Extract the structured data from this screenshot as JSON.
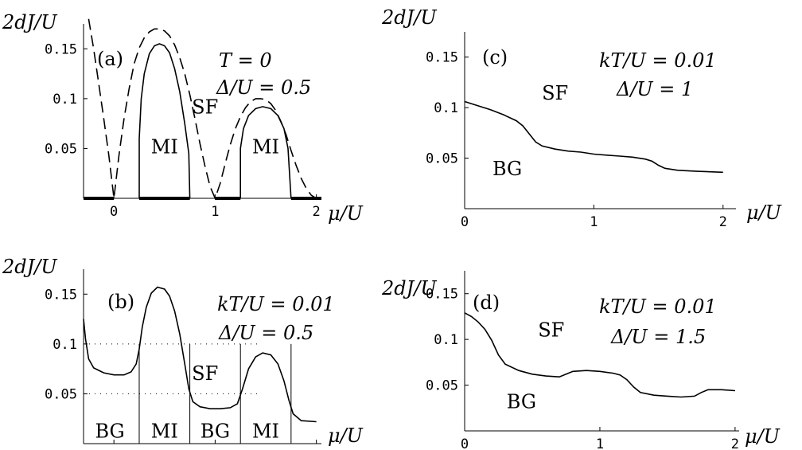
{
  "chart_data": [
    {
      "id": "a",
      "type": "line",
      "ylabel": "2dJ/U",
      "xlabel": "μ/U",
      "xlim": [
        -0.3,
        2.05
      ],
      "ylim": [
        0,
        0.175
      ],
      "xticks": [
        0,
        1,
        2
      ],
      "yticks": [
        0.05,
        0.1,
        0.15
      ],
      "panel_label": "(a)",
      "params": [
        "T = 0",
        "Δ/U = 0.5"
      ],
      "regions": [
        {
          "text": "MI",
          "x": 0.5,
          "y": 0.045
        },
        {
          "text": "SF",
          "x": 0.9,
          "y": 0.085
        },
        {
          "text": "MI",
          "x": 1.5,
          "y": 0.045
        }
      ],
      "series": [
        {
          "style": "solid",
          "points": [
            [
              0.25,
              0
            ],
            [
              0.25,
              0.06
            ],
            [
              0.27,
              0.1
            ],
            [
              0.3,
              0.125
            ],
            [
              0.35,
              0.145
            ],
            [
              0.4,
              0.153
            ],
            [
              0.45,
              0.155
            ],
            [
              0.5,
              0.153
            ],
            [
              0.55,
              0.146
            ],
            [
              0.6,
              0.13
            ],
            [
              0.65,
              0.107
            ],
            [
              0.7,
              0.075
            ],
            [
              0.74,
              0.045
            ],
            [
              0.75,
              0
            ]
          ]
        },
        {
          "style": "solid",
          "points": [
            [
              1.25,
              0
            ],
            [
              1.25,
              0.05
            ],
            [
              1.28,
              0.07
            ],
            [
              1.33,
              0.083
            ],
            [
              1.4,
              0.09
            ],
            [
              1.47,
              0.092
            ],
            [
              1.55,
              0.09
            ],
            [
              1.62,
              0.083
            ],
            [
              1.68,
              0.07
            ],
            [
              1.72,
              0.05
            ],
            [
              1.75,
              0
            ]
          ]
        },
        {
          "style": "dashed",
          "points": [
            [
              -0.25,
              0.18
            ],
            [
              -0.2,
              0.15
            ],
            [
              -0.15,
              0.115
            ],
            [
              -0.1,
              0.08
            ],
            [
              -0.05,
              0.043
            ],
            [
              0,
              0
            ],
            [
              0.05,
              0.043
            ],
            [
              0.1,
              0.08
            ],
            [
              0.15,
              0.11
            ],
            [
              0.2,
              0.135
            ],
            [
              0.25,
              0.151
            ],
            [
              0.3,
              0.161
            ],
            [
              0.35,
              0.167
            ],
            [
              0.4,
              0.17
            ],
            [
              0.45,
              0.17
            ],
            [
              0.5,
              0.168
            ],
            [
              0.55,
              0.163
            ],
            [
              0.6,
              0.154
            ],
            [
              0.65,
              0.141
            ],
            [
              0.7,
              0.125
            ],
            [
              0.75,
              0.104
            ],
            [
              0.8,
              0.08
            ],
            [
              0.85,
              0.055
            ],
            [
              0.9,
              0.032
            ],
            [
              0.95,
              0.012
            ],
            [
              1.0,
              0
            ],
            [
              1.05,
              0.015
            ],
            [
              1.1,
              0.035
            ],
            [
              1.15,
              0.054
            ],
            [
              1.2,
              0.07
            ],
            [
              1.25,
              0.082
            ],
            [
              1.3,
              0.091
            ],
            [
              1.35,
              0.097
            ],
            [
              1.4,
              0.1
            ],
            [
              1.45,
              0.1
            ],
            [
              1.5,
              0.099
            ],
            [
              1.55,
              0.095
            ],
            [
              1.6,
              0.088
            ],
            [
              1.65,
              0.077
            ],
            [
              1.7,
              0.064
            ],
            [
              1.75,
              0.048
            ],
            [
              1.8,
              0.033
            ],
            [
              1.85,
              0.02
            ],
            [
              1.9,
              0.01
            ],
            [
              1.95,
              0.003
            ],
            [
              2.0,
              0
            ]
          ]
        }
      ],
      "thick_segments": [
        [
          -0.3,
          0
        ],
        [
          0.25,
          0.75
        ],
        [
          1.0,
          1.25
        ],
        [
          1.75,
          2.05
        ]
      ]
    },
    {
      "id": "b",
      "type": "line",
      "ylabel": "2dJ/U",
      "xlabel": "μ/U",
      "xlim": [
        -0.3,
        2.05
      ],
      "ylim": [
        0,
        0.175
      ],
      "xticks": [
        0,
        1,
        2
      ],
      "yticks": [
        0.05,
        0.1,
        0.15
      ],
      "panel_label": "(b)",
      "params": [
        "kT/U = 0.01",
        "Δ/U = 0.5"
      ],
      "regions": [
        {
          "text": "BG",
          "x": -0.04,
          "y": 0.006
        },
        {
          "text": "MI",
          "x": 0.5,
          "y": 0.006
        },
        {
          "text": "SF",
          "x": 0.9,
          "y": 0.064
        },
        {
          "text": "BG",
          "x": 1.0,
          "y": 0.006
        },
        {
          "text": "MI",
          "x": 1.5,
          "y": 0.006
        }
      ],
      "dotted_levels": [
        0.1,
        0.05
      ],
      "dotted_xrange": [
        -0.3,
        1.45
      ],
      "vlines": [
        -0.3,
        0.25,
        0.75,
        1.25,
        1.75
      ],
      "series": [
        {
          "style": "solid",
          "points": [
            [
              -0.3,
              0.125
            ],
            [
              -0.28,
              0.105
            ],
            [
              -0.25,
              0.085
            ],
            [
              -0.2,
              0.076
            ],
            [
              -0.1,
              0.071
            ],
            [
              0,
              0.069
            ],
            [
              0.1,
              0.069
            ],
            [
              0.17,
              0.072
            ],
            [
              0.22,
              0.08
            ],
            [
              0.25,
              0.095
            ],
            [
              0.28,
              0.117
            ],
            [
              0.32,
              0.137
            ],
            [
              0.37,
              0.151
            ],
            [
              0.43,
              0.157
            ],
            [
              0.5,
              0.155
            ],
            [
              0.55,
              0.148
            ],
            [
              0.6,
              0.133
            ],
            [
              0.65,
              0.11
            ],
            [
              0.7,
              0.08
            ],
            [
              0.74,
              0.055
            ],
            [
              0.78,
              0.042
            ],
            [
              0.85,
              0.037
            ],
            [
              0.95,
              0.035
            ],
            [
              1.05,
              0.035
            ],
            [
              1.15,
              0.036
            ],
            [
              1.22,
              0.04
            ],
            [
              1.27,
              0.055
            ],
            [
              1.33,
              0.075
            ],
            [
              1.4,
              0.087
            ],
            [
              1.47,
              0.091
            ],
            [
              1.55,
              0.089
            ],
            [
              1.62,
              0.08
            ],
            [
              1.68,
              0.063
            ],
            [
              1.73,
              0.043
            ],
            [
              1.77,
              0.03
            ],
            [
              1.85,
              0.023
            ],
            [
              2.0,
              0.022
            ]
          ]
        }
      ]
    },
    {
      "id": "c",
      "type": "line",
      "ylabel": "2dJ/U",
      "xlabel": "μ/U",
      "xlim": [
        0,
        2.1
      ],
      "ylim": [
        0,
        0.175
      ],
      "xticks": [
        0,
        1,
        2
      ],
      "yticks": [
        0.05,
        0.1,
        0.15
      ],
      "panel_label": "(c)",
      "params": [
        "kT/U = 0.01",
        "Δ/U = 1"
      ],
      "regions": [
        {
          "text": "SF",
          "x": 0.7,
          "y": 0.108
        },
        {
          "text": "BG",
          "x": 0.33,
          "y": 0.033
        }
      ],
      "series": [
        {
          "style": "solid",
          "points": [
            [
              0,
              0.106
            ],
            [
              0.1,
              0.102
            ],
            [
              0.2,
              0.098
            ],
            [
              0.3,
              0.093
            ],
            [
              0.4,
              0.087
            ],
            [
              0.45,
              0.082
            ],
            [
              0.5,
              0.074
            ],
            [
              0.55,
              0.066
            ],
            [
              0.6,
              0.062
            ],
            [
              0.7,
              0.059
            ],
            [
              0.8,
              0.057
            ],
            [
              0.9,
              0.056
            ],
            [
              1.0,
              0.054
            ],
            [
              1.1,
              0.053
            ],
            [
              1.2,
              0.052
            ],
            [
              1.3,
              0.051
            ],
            [
              1.4,
              0.049
            ],
            [
              1.45,
              0.047
            ],
            [
              1.5,
              0.043
            ],
            [
              1.55,
              0.04
            ],
            [
              1.65,
              0.038
            ],
            [
              1.8,
              0.037
            ],
            [
              2.0,
              0.036
            ]
          ]
        }
      ]
    },
    {
      "id": "d",
      "type": "line",
      "ylabel": "2dJ/U",
      "xlabel": "μ/U",
      "xlim": [
        0,
        2.03
      ],
      "ylim": [
        0,
        0.175
      ],
      "xticks": [
        0,
        1,
        2
      ],
      "yticks": [
        0.05,
        0.1,
        0.15
      ],
      "panel_label": "(d)",
      "params": [
        "kT/U = 0.01",
        "Δ/U = 1.5"
      ],
      "regions": [
        {
          "text": "SF",
          "x": 0.64,
          "y": 0.103
        },
        {
          "text": "BG",
          "x": 0.42,
          "y": 0.025
        }
      ],
      "series": [
        {
          "style": "solid",
          "points": [
            [
              0,
              0.129
            ],
            [
              0.05,
              0.125
            ],
            [
              0.1,
              0.119
            ],
            [
              0.15,
              0.111
            ],
            [
              0.2,
              0.099
            ],
            [
              0.25,
              0.083
            ],
            [
              0.3,
              0.073
            ],
            [
              0.4,
              0.066
            ],
            [
              0.5,
              0.062
            ],
            [
              0.6,
              0.06
            ],
            [
              0.7,
              0.059
            ],
            [
              0.75,
              0.062
            ],
            [
              0.8,
              0.065
            ],
            [
              0.9,
              0.066
            ],
            [
              1.0,
              0.065
            ],
            [
              1.1,
              0.063
            ],
            [
              1.15,
              0.061
            ],
            [
              1.2,
              0.056
            ],
            [
              1.25,
              0.048
            ],
            [
              1.3,
              0.042
            ],
            [
              1.4,
              0.039
            ],
            [
              1.5,
              0.038
            ],
            [
              1.6,
              0.037
            ],
            [
              1.7,
              0.038
            ],
            [
              1.75,
              0.042
            ],
            [
              1.8,
              0.045
            ],
            [
              1.9,
              0.045
            ],
            [
              2.0,
              0.044
            ]
          ]
        }
      ]
    }
  ]
}
